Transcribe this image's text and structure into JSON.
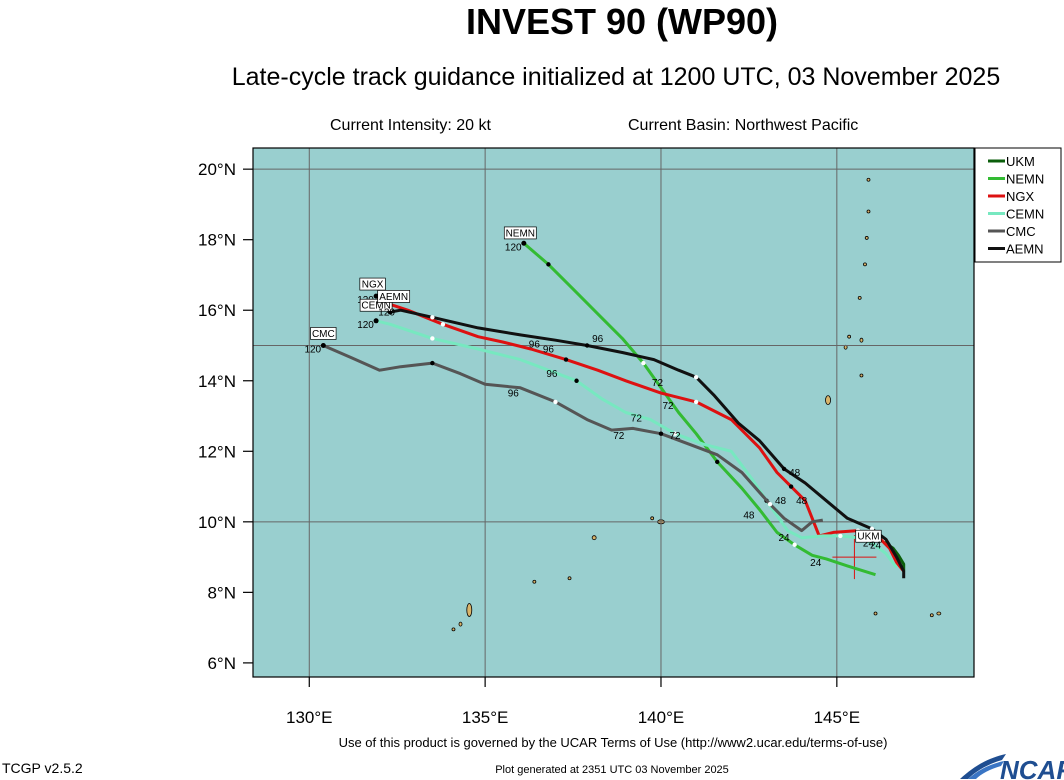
{
  "header": {
    "title": "INVEST 90 (WP90)",
    "subtitle": "Late-cycle track guidance initialized at 1200 UTC, 03 November 2025",
    "current_intensity": "Current Intensity: 20 kt",
    "current_basin": "Current Basin: Northwest Pacific"
  },
  "footer": {
    "terms": "Use of this product is governed by the UCAR Terms of Use (http://www2.ucar.edu/terms-of-use)",
    "version": "TCGP v2.5.2",
    "generated": "Plot generated at 2351 UTC   03 November 2025",
    "logo_text": "NCAR"
  },
  "colors": {
    "ocean": "#99cfcf",
    "land": "#d9b46a",
    "grid": "#666666"
  },
  "chart_data": {
    "type": "map-track",
    "xlim": [
      128.4,
      148.9
    ],
    "ylim": [
      5.6,
      20.6
    ],
    "x_ticks": [
      {
        "value": 130,
        "label": "130°E"
      },
      {
        "value": 135,
        "label": "135°E"
      },
      {
        "value": 140,
        "label": "140°E"
      },
      {
        "value": 145,
        "label": "145°E"
      }
    ],
    "y_ticks": [
      {
        "value": 6,
        "label": "6°N"
      },
      {
        "value": 8,
        "label": "8°N"
      },
      {
        "value": 10,
        "label": "10°N"
      },
      {
        "value": 12,
        "label": "12°N"
      },
      {
        "value": 14,
        "label": "14°N"
      },
      {
        "value": 16,
        "label": "16°N"
      },
      {
        "value": 18,
        "label": "18°N"
      },
      {
        "value": 20,
        "label": "20°N"
      }
    ],
    "grid": true,
    "legend_position": "right",
    "current_position": {
      "lon": 145.5,
      "lat": 9.0
    },
    "series": [
      {
        "name": "UKM",
        "color": "#0b5e0b",
        "label_box": "UKM",
        "label_lon": 145.9,
        "label_lat": 9.45,
        "points": [
          [
            146.9,
            8.6
          ],
          [
            146.9,
            8.8
          ],
          [
            146.75,
            9.05
          ],
          [
            146.6,
            9.25
          ],
          [
            146.3,
            9.45
          ],
          [
            146.0,
            9.55
          ]
        ],
        "hour_labels": [
          {
            "text": "24",
            "lon": 145.9,
            "lat": 9.3
          }
        ]
      },
      {
        "name": "NEMN",
        "color": "#33bb33",
        "label_box": "NEMN",
        "label_lon": 136.0,
        "label_lat": 18.05,
        "end_label": "120",
        "end_label_lon": 135.8,
        "end_label_lat": 17.7,
        "points": [
          [
            146.1,
            8.5
          ],
          [
            145.3,
            8.75
          ],
          [
            144.7,
            8.95
          ],
          [
            144.3,
            9.05
          ],
          [
            143.8,
            9.35
          ],
          [
            143.3,
            9.7
          ],
          [
            142.8,
            10.35
          ],
          [
            142.3,
            10.95
          ],
          [
            141.6,
            11.7
          ],
          [
            141.0,
            12.5
          ],
          [
            140.5,
            13.1
          ],
          [
            140.0,
            13.8
          ],
          [
            139.5,
            14.5
          ],
          [
            138.9,
            15.2
          ],
          [
            138.3,
            15.8
          ],
          [
            137.5,
            16.6
          ],
          [
            136.8,
            17.3
          ],
          [
            136.1,
            17.9
          ]
        ],
        "hour_labels": [
          {
            "text": "24",
            "lon": 144.4,
            "lat": 8.75
          },
          {
            "text": "48",
            "lon": 142.5,
            "lat": 10.1
          },
          {
            "text": "72",
            "lon": 140.4,
            "lat": 12.35
          },
          {
            "text": "96",
            "lon": 138.2,
            "lat": 15.1
          }
        ]
      },
      {
        "name": "NGX",
        "color": "#dd1111",
        "label_box": "NGX",
        "label_lon": 131.8,
        "label_lat": 16.6,
        "end_label": "120",
        "end_label_lon": 131.6,
        "end_label_lat": 16.2,
        "points": [
          [
            146.9,
            8.6
          ],
          [
            146.7,
            8.85
          ],
          [
            146.5,
            9.25
          ],
          [
            146.2,
            9.55
          ],
          [
            145.6,
            9.75
          ],
          [
            144.9,
            9.7
          ],
          [
            144.5,
            9.6
          ],
          [
            144.1,
            10.6
          ],
          [
            143.7,
            11.0
          ],
          [
            143.3,
            11.4
          ],
          [
            142.8,
            12.1
          ],
          [
            142.0,
            12.9
          ],
          [
            141.0,
            13.4
          ],
          [
            140.0,
            13.65
          ],
          [
            139.0,
            14.0
          ],
          [
            138.2,
            14.3
          ],
          [
            137.3,
            14.6
          ],
          [
            136.3,
            14.9
          ],
          [
            135.5,
            15.1
          ],
          [
            134.8,
            15.25
          ],
          [
            133.8,
            15.6
          ],
          [
            132.8,
            16.0
          ],
          [
            132.2,
            16.2
          ],
          [
            131.9,
            16.4
          ]
        ],
        "hour_labels": [
          {
            "text": "48",
            "lon": 143.8,
            "lat": 11.3
          },
          {
            "text": "72",
            "lon": 140.2,
            "lat": 13.2
          },
          {
            "text": "96",
            "lon": 136.8,
            "lat": 14.8
          }
        ]
      },
      {
        "name": "CEMN",
        "color": "#77e8c0",
        "label_box": "CEMN",
        "label_lon": 131.9,
        "label_lat": 16.0,
        "end_label": "120",
        "end_label_lon": 131.6,
        "end_label_lat": 15.5,
        "points": [
          [
            146.7,
            8.7
          ],
          [
            146.4,
            9.1
          ],
          [
            146.0,
            9.4
          ],
          [
            145.6,
            9.55
          ],
          [
            145.1,
            9.6
          ],
          [
            144.6,
            9.6
          ],
          [
            144.0,
            9.55
          ],
          [
            143.6,
            9.75
          ],
          [
            143.0,
            10.6
          ],
          [
            142.6,
            11.2
          ],
          [
            142.0,
            12.0
          ],
          [
            141.2,
            12.2
          ],
          [
            140.4,
            12.5
          ],
          [
            139.7,
            12.9
          ],
          [
            139.0,
            13.1
          ],
          [
            138.3,
            13.5
          ],
          [
            137.6,
            14.0
          ],
          [
            136.8,
            14.3
          ],
          [
            136.0,
            14.6
          ],
          [
            134.8,
            14.9
          ],
          [
            133.5,
            15.2
          ],
          [
            132.3,
            15.6
          ],
          [
            131.9,
            15.7
          ]
        ],
        "hour_labels": [
          {
            "text": "48",
            "lon": 143.4,
            "lat": 10.5
          },
          {
            "text": "72",
            "lon": 139.3,
            "lat": 12.85
          },
          {
            "text": "96",
            "lon": 136.9,
            "lat": 14.1
          }
        ]
      },
      {
        "name": "CMC",
        "color": "#555555",
        "label_box": "CMC",
        "label_lon": 130.4,
        "label_lat": 15.2,
        "end_label": "120",
        "end_label_lon": 130.1,
        "end_label_lat": 14.8,
        "points": [
          [
            144.6,
            10.05
          ],
          [
            144.3,
            10.0
          ],
          [
            144.0,
            9.75
          ],
          [
            143.5,
            10.1
          ],
          [
            143.1,
            10.5
          ],
          [
            142.3,
            11.4
          ],
          [
            141.6,
            11.9
          ],
          [
            140.8,
            12.2
          ],
          [
            140.0,
            12.5
          ],
          [
            139.2,
            12.65
          ],
          [
            138.6,
            12.6
          ],
          [
            137.9,
            12.9
          ],
          [
            137.0,
            13.4
          ],
          [
            136.0,
            13.8
          ],
          [
            135.0,
            13.9
          ],
          [
            134.3,
            14.2
          ],
          [
            133.5,
            14.5
          ],
          [
            132.6,
            14.4
          ],
          [
            132.0,
            14.3
          ],
          [
            131.2,
            14.65
          ],
          [
            130.4,
            15.0
          ]
        ],
        "hour_labels": [
          {
            "text": "24",
            "lon": 143.5,
            "lat": 9.45
          },
          {
            "text": "72",
            "lon": 138.8,
            "lat": 12.35
          },
          {
            "text": "96",
            "lon": 135.8,
            "lat": 13.55
          }
        ]
      },
      {
        "name": "AEMN",
        "color": "#111111",
        "label_box": "AEMN",
        "label_lon": 132.4,
        "label_lat": 16.25,
        "end_label": "120",
        "end_label_lon": 132.2,
        "end_label_lat": 15.85,
        "points": [
          [
            146.9,
            8.4
          ],
          [
            146.9,
            8.6
          ],
          [
            146.7,
            9.0
          ],
          [
            146.4,
            9.5
          ],
          [
            146.0,
            9.8
          ],
          [
            145.3,
            10.1
          ],
          [
            144.7,
            10.6
          ],
          [
            144.1,
            11.1
          ],
          [
            143.5,
            11.5
          ],
          [
            142.8,
            12.3
          ],
          [
            142.2,
            12.8
          ],
          [
            141.5,
            13.6
          ],
          [
            141.0,
            14.1
          ],
          [
            140.5,
            14.3
          ],
          [
            139.8,
            14.6
          ],
          [
            138.9,
            14.8
          ],
          [
            137.9,
            15.0
          ],
          [
            137.0,
            15.15
          ],
          [
            136.0,
            15.3
          ],
          [
            134.8,
            15.5
          ],
          [
            133.5,
            15.8
          ],
          [
            132.6,
            16.0
          ],
          [
            132.3,
            15.95
          ]
        ],
        "hour_labels": [
          {
            "text": "24",
            "lon": 146.1,
            "lat": 9.25
          },
          {
            "text": "48",
            "lon": 144.0,
            "lat": 10.5
          },
          {
            "text": "72",
            "lon": 139.9,
            "lat": 13.85
          },
          {
            "text": "96",
            "lon": 136.4,
            "lat": 14.95
          }
        ]
      }
    ]
  }
}
